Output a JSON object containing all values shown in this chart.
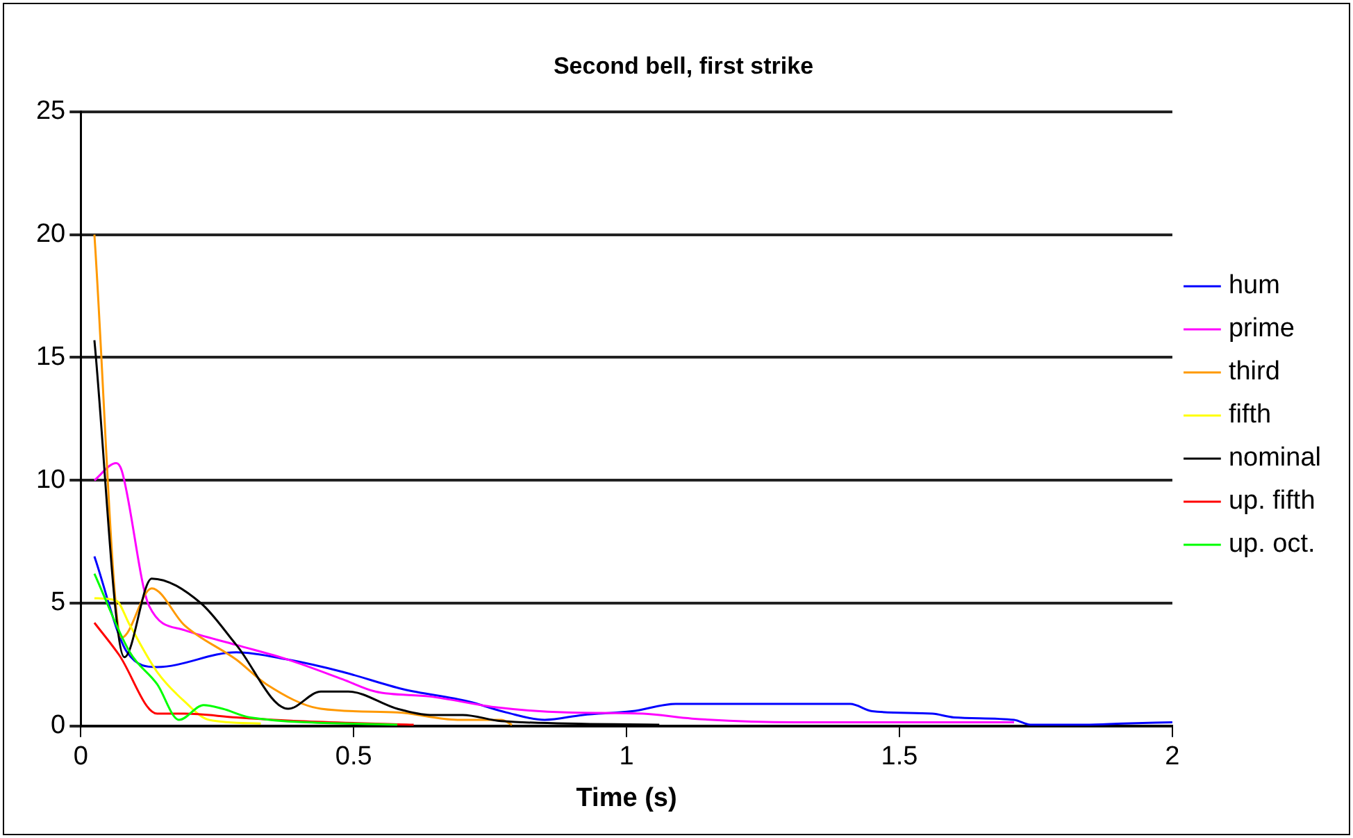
{
  "chart_data": {
    "type": "line",
    "title": "Second bell, first strike",
    "xlabel": "Time (s)",
    "xlim": [
      0,
      2
    ],
    "xticks": [
      0,
      0.5,
      1,
      1.5,
      2
    ],
    "ylim": [
      0,
      25
    ],
    "yticks": [
      0,
      5,
      10,
      15,
      20,
      25
    ],
    "grid": "y",
    "legend": "right",
    "marker": "none",
    "line_style": "solid",
    "series": [
      {
        "name": "hum",
        "color": "#0000ff",
        "x": [
          0.025,
          0.085,
          0.14,
          0.285,
          0.38,
          0.48,
          0.59,
          0.71,
          0.78,
          0.85,
          0.92,
          1.01,
          1.09,
          1.41,
          1.45,
          1.56,
          1.6,
          1.71,
          1.74,
          1.84,
          1.91,
          2.0
        ],
        "values": [
          6.9,
          3.0,
          2.4,
          3.0,
          2.7,
          2.2,
          1.5,
          1.0,
          0.55,
          0.25,
          0.45,
          0.6,
          0.9,
          0.9,
          0.6,
          0.5,
          0.35,
          0.25,
          0.05,
          0.05,
          0.1,
          0.15
        ]
      },
      {
        "name": "prime",
        "color": "#ff00ff",
        "x": [
          0.025,
          0.065,
          0.075,
          0.125,
          0.19,
          0.285,
          0.38,
          0.48,
          0.54,
          0.64,
          0.765,
          0.89,
          1.03,
          1.12,
          1.31,
          1.71
        ],
        "values": [
          10.0,
          10.7,
          10.4,
          4.9,
          3.9,
          3.3,
          2.7,
          1.9,
          1.4,
          1.2,
          0.75,
          0.55,
          0.5,
          0.3,
          0.15,
          0.15
        ]
      },
      {
        "name": "third",
        "color": "#ff9900",
        "x": [
          0.025,
          0.075,
          0.13,
          0.19,
          0.285,
          0.34,
          0.44,
          0.58,
          0.69,
          0.77,
          0.79
        ],
        "values": [
          20.0,
          3.6,
          5.6,
          4.1,
          2.7,
          1.7,
          0.7,
          0.55,
          0.25,
          0.25,
          0.05
        ]
      },
      {
        "name": "fifth",
        "color": "#ffff00",
        "x": [
          0.025,
          0.065,
          0.09,
          0.14,
          0.19,
          0.235,
          0.33
        ],
        "values": [
          5.2,
          5.1,
          4.1,
          2.2,
          1.0,
          0.25,
          0.1
        ]
      },
      {
        "name": "nominal",
        "color": "#000000",
        "x": [
          0.025,
          0.08,
          0.13,
          0.22,
          0.285,
          0.38,
          0.44,
          0.49,
          0.58,
          0.64,
          0.7,
          0.77,
          1.06
        ],
        "values": [
          15.7,
          2.8,
          6.0,
          5.0,
          3.3,
          0.7,
          1.4,
          1.4,
          0.7,
          0.45,
          0.45,
          0.2,
          0.05
        ]
      },
      {
        "name": "up. fifth",
        "color": "#ff0000",
        "x": [
          0.025,
          0.07,
          0.14,
          0.19,
          0.285,
          0.4,
          0.61
        ],
        "values": [
          4.2,
          2.9,
          0.5,
          0.5,
          0.35,
          0.2,
          0.05
        ]
      },
      {
        "name": "up. oct.",
        "color": "#00ff00",
        "x": [
          0.025,
          0.09,
          0.14,
          0.18,
          0.225,
          0.26,
          0.31,
          0.58
        ],
        "values": [
          6.2,
          3.0,
          1.7,
          0.25,
          0.85,
          0.7,
          0.35,
          0.05
        ]
      }
    ]
  }
}
